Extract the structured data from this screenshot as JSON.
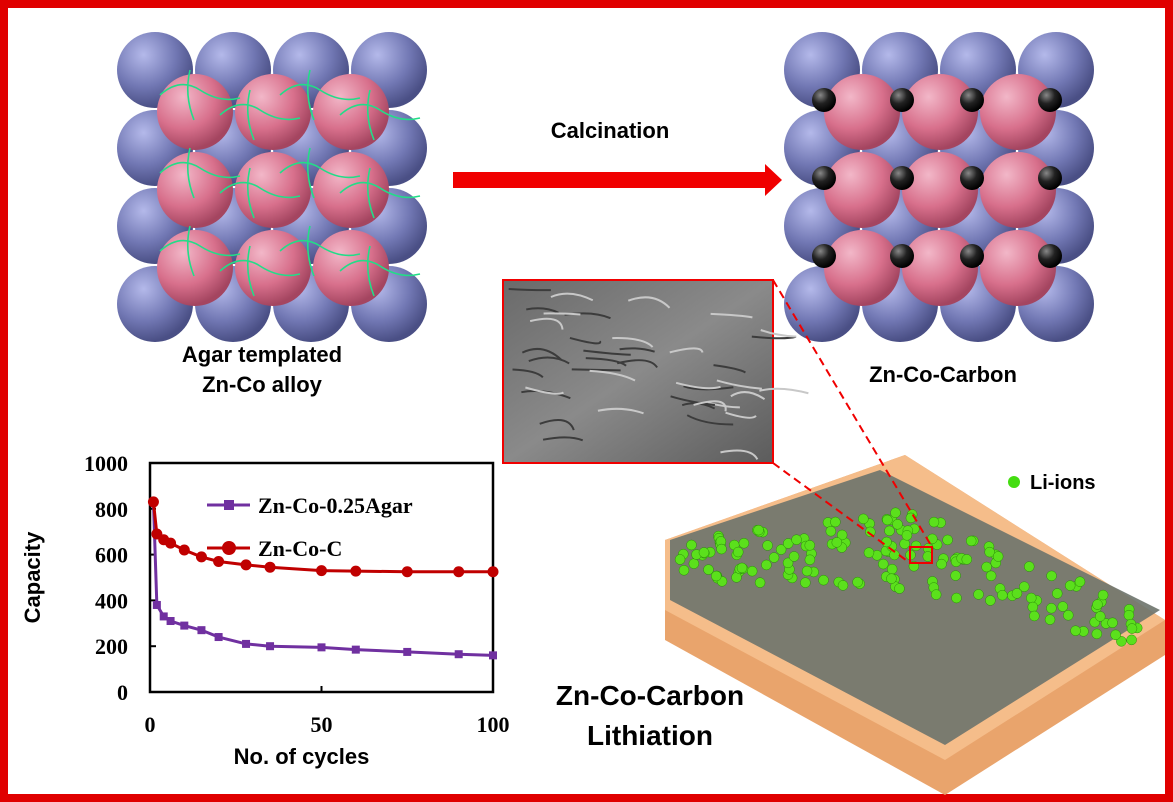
{
  "labels": {
    "left_caption": [
      "Agar templated",
      "Zn-Co alloy"
    ],
    "process": "Calcination",
    "right_caption": "Zn-Co-Carbon",
    "ion_legend": "Li-ions",
    "bottom_caption": [
      "Zn-Co-Carbon",
      "Lithiation"
    ]
  },
  "chart_data": {
    "type": "line",
    "x_label": "No. of cycles",
    "y_label": "Capacity",
    "x": [
      1,
      2,
      4,
      6,
      10,
      15,
      20,
      28,
      35,
      50,
      60,
      75,
      90,
      100
    ],
    "series": [
      {
        "name": "Zn-Co-0.25Agar",
        "color": "#7030a0",
        "marker": "square",
        "values": [
          830,
          380,
          330,
          310,
          290,
          270,
          240,
          210,
          200,
          195,
          185,
          175,
          165,
          160
        ]
      },
      {
        "name": "Zn-Co-C",
        "color": "#c00000",
        "marker": "circle",
        "values": [
          830,
          690,
          665,
          650,
          620,
          590,
          570,
          555,
          545,
          530,
          528,
          525,
          525,
          525
        ]
      }
    ],
    "xlim": [
      0,
      100
    ],
    "xticks": [
      0,
      50,
      100
    ],
    "ylim": [
      0,
      1000
    ],
    "yticks": [
      0,
      200,
      400,
      600,
      800,
      1000
    ],
    "legend": "upper right"
  }
}
